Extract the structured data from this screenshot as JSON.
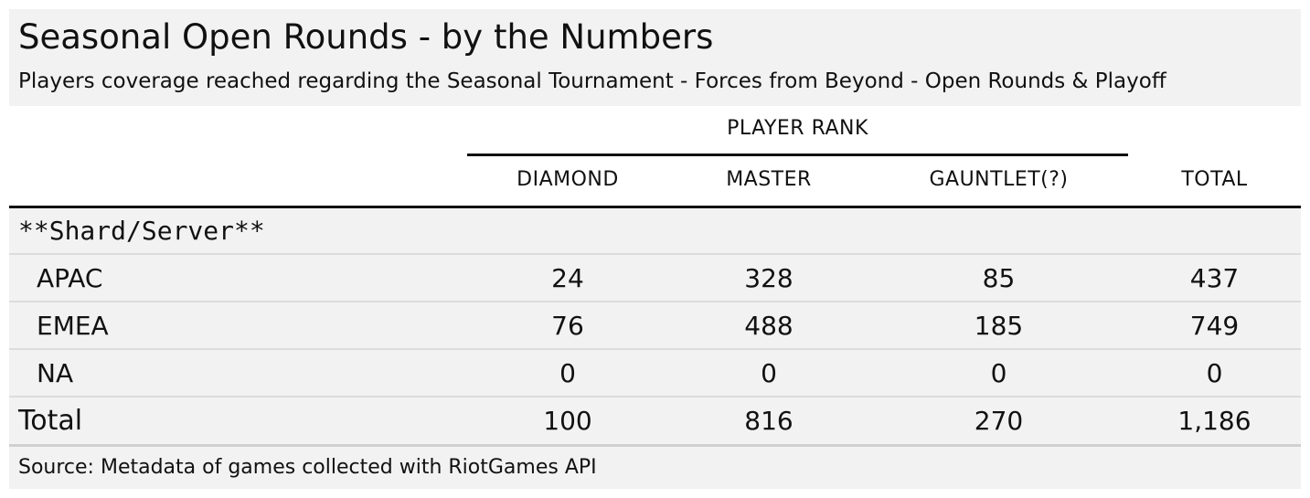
{
  "header": {
    "title": "Seasonal Open Rounds - by the Numbers",
    "subtitle": "Players coverage reached regarding the Seasonal Tournament - Forces from Beyond - Open Rounds & Playoff"
  },
  "table": {
    "spanner": "PLAYER RANK",
    "columns": [
      "DIAMOND",
      "MASTER",
      "GAUNTLET(?)",
      "TOTAL"
    ],
    "group_label": "**Shard/Server**",
    "rows": [
      {
        "label": "APAC",
        "values": [
          "24",
          "328",
          "85",
          "437"
        ]
      },
      {
        "label": "EMEA",
        "values": [
          "76",
          "488",
          "185",
          "749"
        ]
      },
      {
        "label": "NA",
        "values": [
          "0",
          "0",
          "0",
          "0"
        ]
      }
    ],
    "total": {
      "label": "Total",
      "values": [
        "100",
        "816",
        "270",
        "1,186"
      ]
    }
  },
  "footer": {
    "source": "Source: Metadata of games collected with RiotGames API"
  },
  "colors": {
    "panel_background": "#f2f2f2",
    "rule": "#111111",
    "row_separator": "#dcdcdc"
  }
}
